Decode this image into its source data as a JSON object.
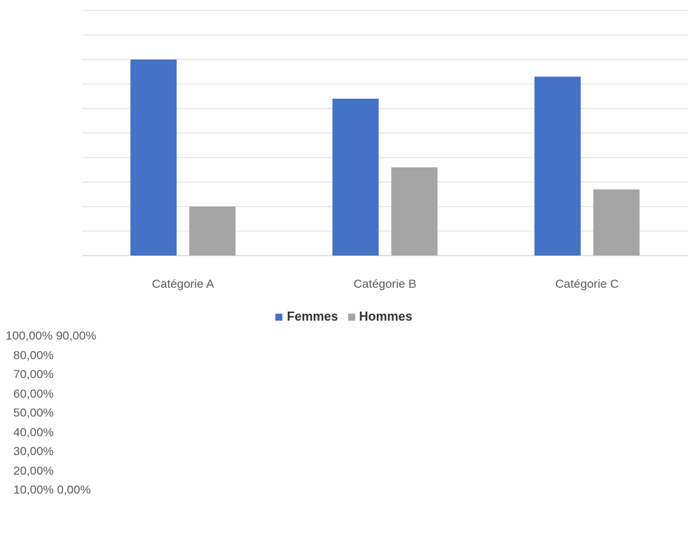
{
  "chart_data": {
    "type": "bar",
    "categories": [
      "Catégorie A",
      "Catégorie B",
      "Catégorie C"
    ],
    "series": [
      {
        "name": "Femmes",
        "values": [
          80,
          64,
          73
        ],
        "color": "#4472c4"
      },
      {
        "name": "Hommes",
        "values": [
          20,
          36,
          27
        ],
        "color": "#a5a5a5"
      }
    ],
    "ylim": [
      0,
      100
    ],
    "grid": true,
    "legend_position": "bottom",
    "y_tick_labels": [
      "100,00% 90,00%",
      "80,00%",
      "70,00%",
      "60,00%",
      "50,00%",
      "40,00%",
      "30,00%",
      "20,00%",
      "10,00% 0,00%"
    ]
  }
}
